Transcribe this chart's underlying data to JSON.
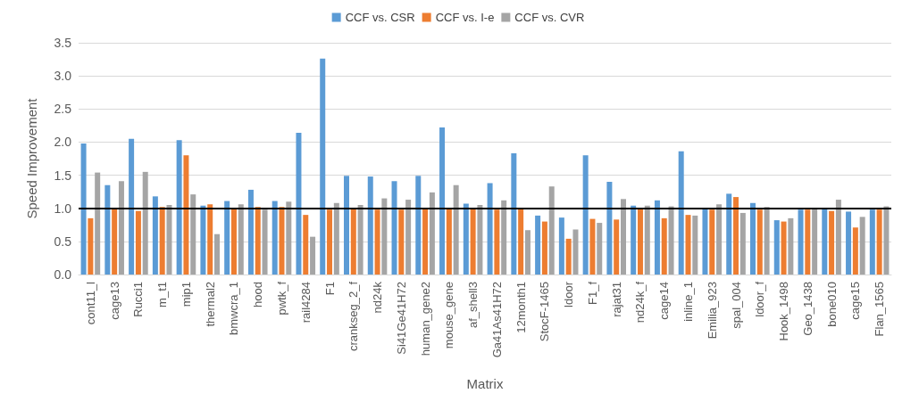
{
  "chart_data": {
    "type": "bar",
    "xlabel": "Matrix",
    "ylabel": "Speed Improvement",
    "categories": [
      "cont11_l",
      "cage13",
      "Rucci1",
      "m_t1",
      "mip1",
      "thermal2",
      "bmwcra_1",
      "hood",
      "pwtk_f",
      "rail4284",
      "F1",
      "crankseg_2_f",
      "nd24k",
      "Si41Ge41H72",
      "human_gene2",
      "mouse_gene",
      "af_shell3",
      "Ga41As41H72",
      "12month1",
      "StocF-1465",
      "ldoor",
      "F1_f",
      "rajat31",
      "nd24k_f",
      "cage14",
      "inline_1",
      "Emilia_923",
      "spal_004",
      "ldoor_f",
      "Hook_1498",
      "Geo_1438",
      "bone010",
      "cage15",
      "Flan_1565"
    ],
    "series": [
      {
        "name": "CCF vs. CSR",
        "color": "#5b9bd5",
        "values": [
          1.98,
          1.35,
          2.05,
          1.18,
          2.03,
          1.04,
          1.11,
          1.28,
          1.11,
          2.14,
          3.26,
          1.49,
          1.48,
          1.41,
          1.49,
          2.22,
          1.07,
          1.38,
          1.83,
          0.89,
          0.86,
          1.8,
          1.4,
          1.04,
          1.12,
          1.86,
          1.01,
          1.22,
          1.08,
          0.82,
          0.98,
          1.0,
          0.95,
          0.98
        ]
      },
      {
        "name": "CCF vs. I-e",
        "color": "#ed7d31",
        "values": [
          0.85,
          1.0,
          0.96,
          1.02,
          1.8,
          1.06,
          1.01,
          1.02,
          1.02,
          0.9,
          0.98,
          1.0,
          0.98,
          0.98,
          1.01,
          1.0,
          1.0,
          0.98,
          1.01,
          0.8,
          0.54,
          0.84,
          0.83,
          1.0,
          0.85,
          0.9,
          0.98,
          1.17,
          0.98,
          0.8,
          0.98,
          0.96,
          0.71,
          0.98
        ]
      },
      {
        "name": "CCF vs. CVR",
        "color": "#a5a5a5",
        "values": [
          1.54,
          1.41,
          1.55,
          1.05,
          1.21,
          0.61,
          1.06,
          0.98,
          1.1,
          0.57,
          1.08,
          1.05,
          1.15,
          1.13,
          1.24,
          1.35,
          1.05,
          1.12,
          0.67,
          1.33,
          0.68,
          0.78,
          1.14,
          1.04,
          1.03,
          0.89,
          1.06,
          0.93,
          1.02,
          0.85,
          1.0,
          1.13,
          0.87,
          1.03
        ]
      }
    ],
    "ylim": [
      0,
      3.5
    ],
    "yticks": [
      {
        "value": 0,
        "label": "0.0"
      },
      {
        "value": 0.5,
        "label": "0.5"
      },
      {
        "value": 1,
        "label": "1.0"
      },
      {
        "value": 1.5,
        "label": "1.5"
      },
      {
        "value": 2,
        "label": "2.0"
      },
      {
        "value": 2.5,
        "label": "2.5"
      },
      {
        "value": 3,
        "label": "3.0"
      },
      {
        "value": 3.5,
        "label": "3.5"
      }
    ],
    "grid": "y",
    "legend": "top",
    "ref_lines": [
      {
        "axis": "y",
        "value": 1,
        "label": null,
        "color": "#000000"
      }
    ]
  }
}
